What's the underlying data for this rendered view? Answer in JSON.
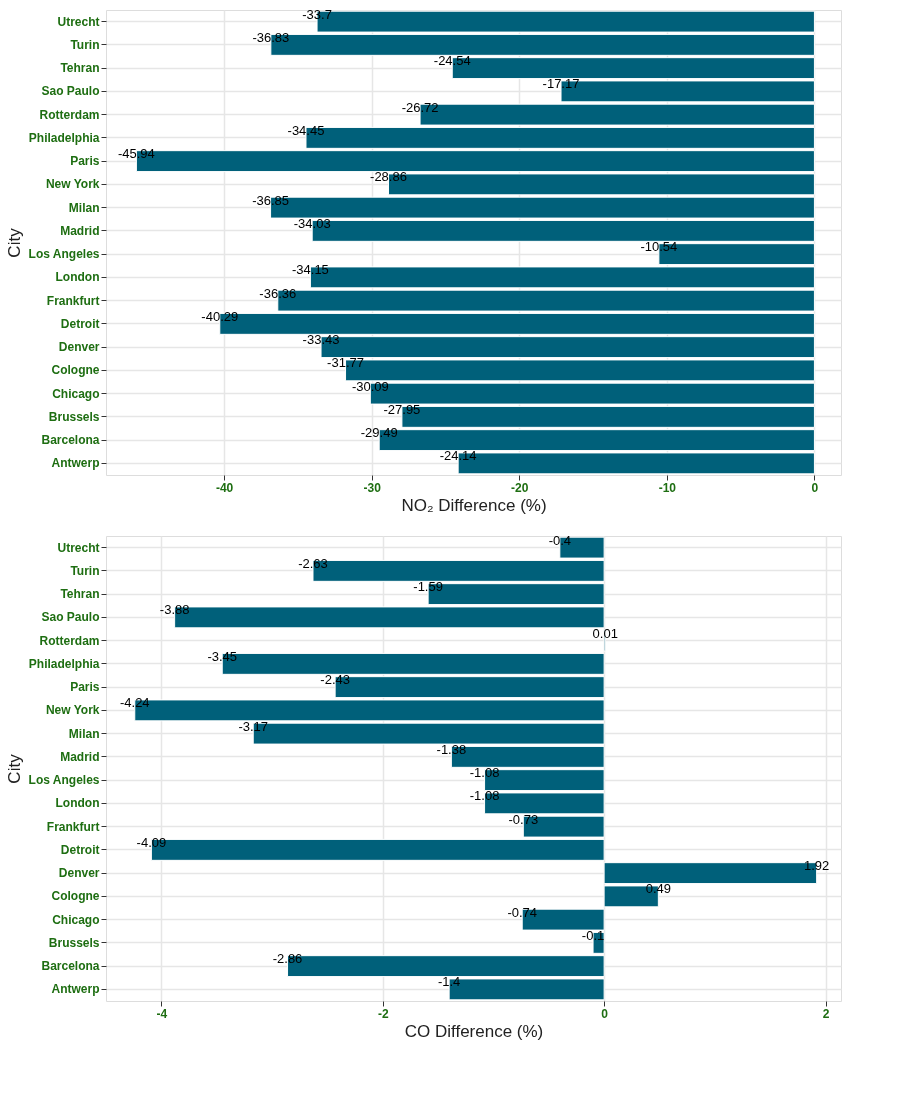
{
  "chart_data": [
    {
      "type": "bar",
      "orientation": "horizontal",
      "xlabel": "NO₂ Difference (%)",
      "ylabel": "City",
      "categories": [
        "Utrecht",
        "Turin",
        "Tehran",
        "Sao Paulo",
        "Rotterdam",
        "Philadelphia",
        "Paris",
        "New York",
        "Milan",
        "Madrid",
        "Los Angeles",
        "London",
        "Frankfurt",
        "Detroit",
        "Denver",
        "Cologne",
        "Chicago",
        "Brussels",
        "Barcelona",
        "Antwerp"
      ],
      "values": [
        -33.7,
        -36.83,
        -24.54,
        -17.17,
        -26.72,
        -34.45,
        -45.94,
        -28.86,
        -36.85,
        -34.03,
        -10.54,
        -34.15,
        -36.36,
        -40.29,
        -33.43,
        -31.77,
        -30.09,
        -27.95,
        -29.49,
        -24.14
      ],
      "color": "#00607a",
      "xlim": [
        -48,
        1.8
      ],
      "xticks": [
        -40,
        -30,
        -20,
        -10,
        0
      ],
      "grid": true,
      "data_labels": true
    },
    {
      "type": "bar",
      "orientation": "horizontal",
      "xlabel": "CO Difference (%)",
      "ylabel": "City",
      "categories": [
        "Utrecht",
        "Turin",
        "Tehran",
        "Sao Paulo",
        "Rotterdam",
        "Philadelphia",
        "Paris",
        "New York",
        "Milan",
        "Madrid",
        "Los Angeles",
        "London",
        "Frankfurt",
        "Detroit",
        "Denver",
        "Cologne",
        "Chicago",
        "Brussels",
        "Barcelona",
        "Antwerp"
      ],
      "values": [
        -0.4,
        -2.63,
        -1.59,
        -3.88,
        0.01,
        -3.45,
        -2.43,
        -4.24,
        -3.17,
        -1.38,
        -1.08,
        -1.08,
        -0.73,
        -4.09,
        1.92,
        0.49,
        -0.74,
        -0.1,
        -2.86,
        -1.4
      ],
      "color": "#00607a",
      "xlim": [
        -4.5,
        2.14
      ],
      "xticks": [
        -4,
        -2,
        0,
        2
      ],
      "grid": true,
      "data_labels": true
    }
  ]
}
